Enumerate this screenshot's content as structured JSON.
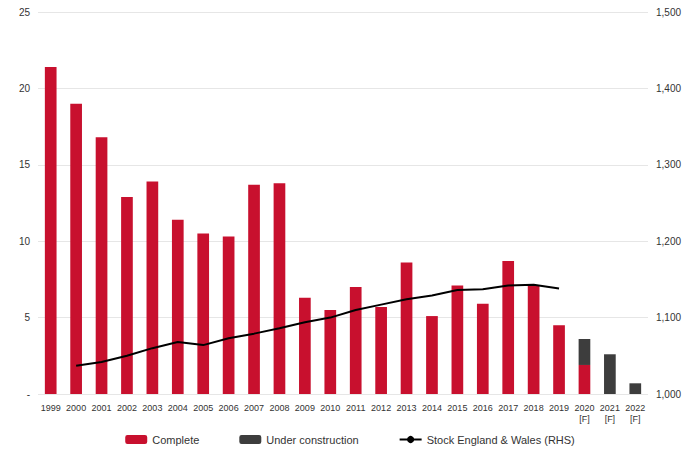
{
  "chart_data": {
    "type": "bar",
    "categories": [
      "1999",
      "2000",
      "2001",
      "2002",
      "2003",
      "2004",
      "2005",
      "2006",
      "2007",
      "2008",
      "2009",
      "2010",
      "2011",
      "2012",
      "2013",
      "2014",
      "2015",
      "2016",
      "2017",
      "2018",
      "2019",
      "2020\n[F]",
      "2021\n[F]",
      "2022\n[F]"
    ],
    "series": [
      {
        "name": "Complete",
        "type": "bar",
        "color": "#c8102e",
        "values": [
          21.4,
          19.0,
          16.8,
          12.9,
          13.9,
          11.4,
          10.5,
          10.3,
          13.7,
          13.8,
          6.3,
          5.5,
          7.0,
          5.7,
          8.6,
          5.1,
          7.1,
          5.9,
          8.7,
          7.1,
          4.5,
          1.9,
          null,
          null
        ]
      },
      {
        "name": "Under construction",
        "type": "bar",
        "color": "#3d3d3d",
        "values": [
          null,
          null,
          null,
          null,
          null,
          null,
          null,
          null,
          null,
          null,
          null,
          null,
          null,
          null,
          null,
          null,
          null,
          null,
          null,
          null,
          null,
          1.7,
          2.6,
          0.7
        ]
      },
      {
        "name": "Stock England & Wales (RHS)",
        "type": "line",
        "axis": "y2",
        "color": "#000000",
        "line_style": "solid",
        "values": [
          null,
          1037,
          1042,
          1050,
          1060,
          1068,
          1064,
          1073,
          1079,
          1086,
          1094,
          1100,
          1110,
          1117,
          1124,
          1129,
          1136,
          1137,
          1142,
          1143,
          1138,
          null,
          null,
          null
        ]
      }
    ],
    "stacked": true,
    "ylim": [
      0,
      25
    ],
    "yticks": [
      {
        "value": 0,
        "label": "-"
      },
      5,
      10,
      15,
      20,
      25
    ],
    "y2lim": [
      1000,
      1500
    ],
    "y2ticks": [
      {
        "value": 1000,
        "label": "1,000"
      },
      {
        "value": 1100,
        "label": "1,100"
      },
      {
        "value": 1200,
        "label": "1,200"
      },
      {
        "value": 1300,
        "label": "1,300"
      },
      {
        "value": 1400,
        "label": "1,400"
      },
      {
        "value": 1500,
        "label": "1,500"
      }
    ],
    "grid": true,
    "legend": "bottom"
  }
}
